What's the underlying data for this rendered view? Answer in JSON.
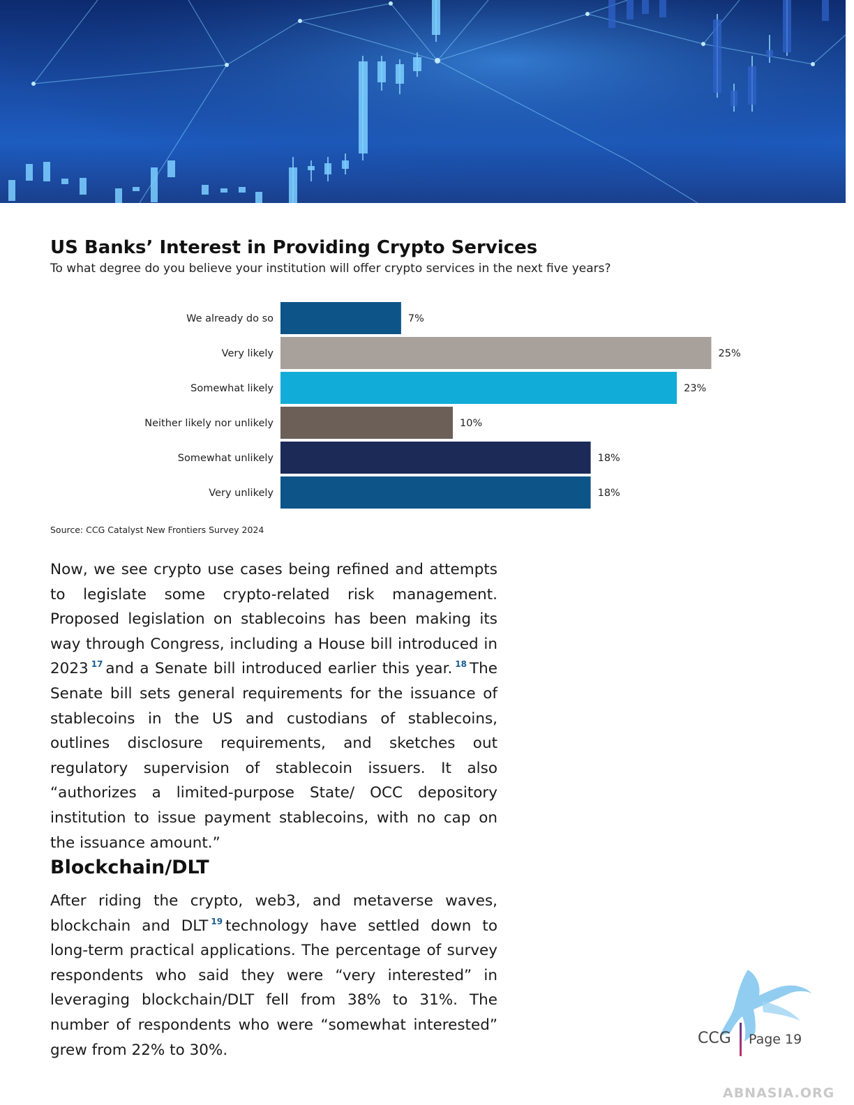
{
  "chart_data": {
    "type": "bar",
    "orientation": "horizontal",
    "title": "US Banks’ Interest in Providing Crypto Services",
    "subtitle": "To what degree do you believe your institution will offer crypto services in the next five years?",
    "categories": [
      "We already do so",
      "Very likely",
      "Somewhat likely",
      "Neither likely nor unlikely",
      "Somewhat unlikely",
      "Very unlikely"
    ],
    "values": [
      7,
      25,
      23,
      10,
      18,
      18
    ],
    "value_labels": [
      "7%",
      "25%",
      "23%",
      "10%",
      "18%",
      "18%"
    ],
    "colors": [
      "#0d5488",
      "#a8a09b",
      "#12acd8",
      "#6b5f58",
      "#1b2a57",
      "#0d5488"
    ],
    "grid": false,
    "legend": "none",
    "source": "Source: CCG Catalyst New Frontiers Survey 2024"
  },
  "body": {
    "paragraph1": {
      "part1": "Now, we see crypto use cases being refined and attempts to legislate some crypto-related risk management. Proposed legislation on stablecoins has been making its way through Congress, including a House bill introduced in 2023",
      "fn1": "17",
      "part2": "and a Senate bill introduced earlier this year.",
      "fn2": "18",
      "part3": "The Senate bill sets general requirements for the issuance of stablecoins in the US and custodians of stablecoins, outlines disclosure requirements, and sketches out regulatory supervision of stablecoin issuers. It also “authorizes a limited-purpose State/ OCC depository institution to issue payment stablecoins, with no cap on the issuance amount.”"
    },
    "section_heading": "Blockchain/DLT",
    "paragraph2": {
      "part1": "After riding the crypto, web3, and metaverse waves, blockchain and DLT",
      "fn1": "19",
      "part2": "technology have settled down to long-term practical applications. The percentage of survey respondents who said they were “very interested” in leveraging blockchain/DLT fell from 38% to 31%. The number of respondents who were “somewhat interested” grew from 22% to 30%."
    }
  },
  "footer": {
    "brand": "CCG",
    "page": "Page 19",
    "watermark": "ABNASIA.ORG"
  }
}
